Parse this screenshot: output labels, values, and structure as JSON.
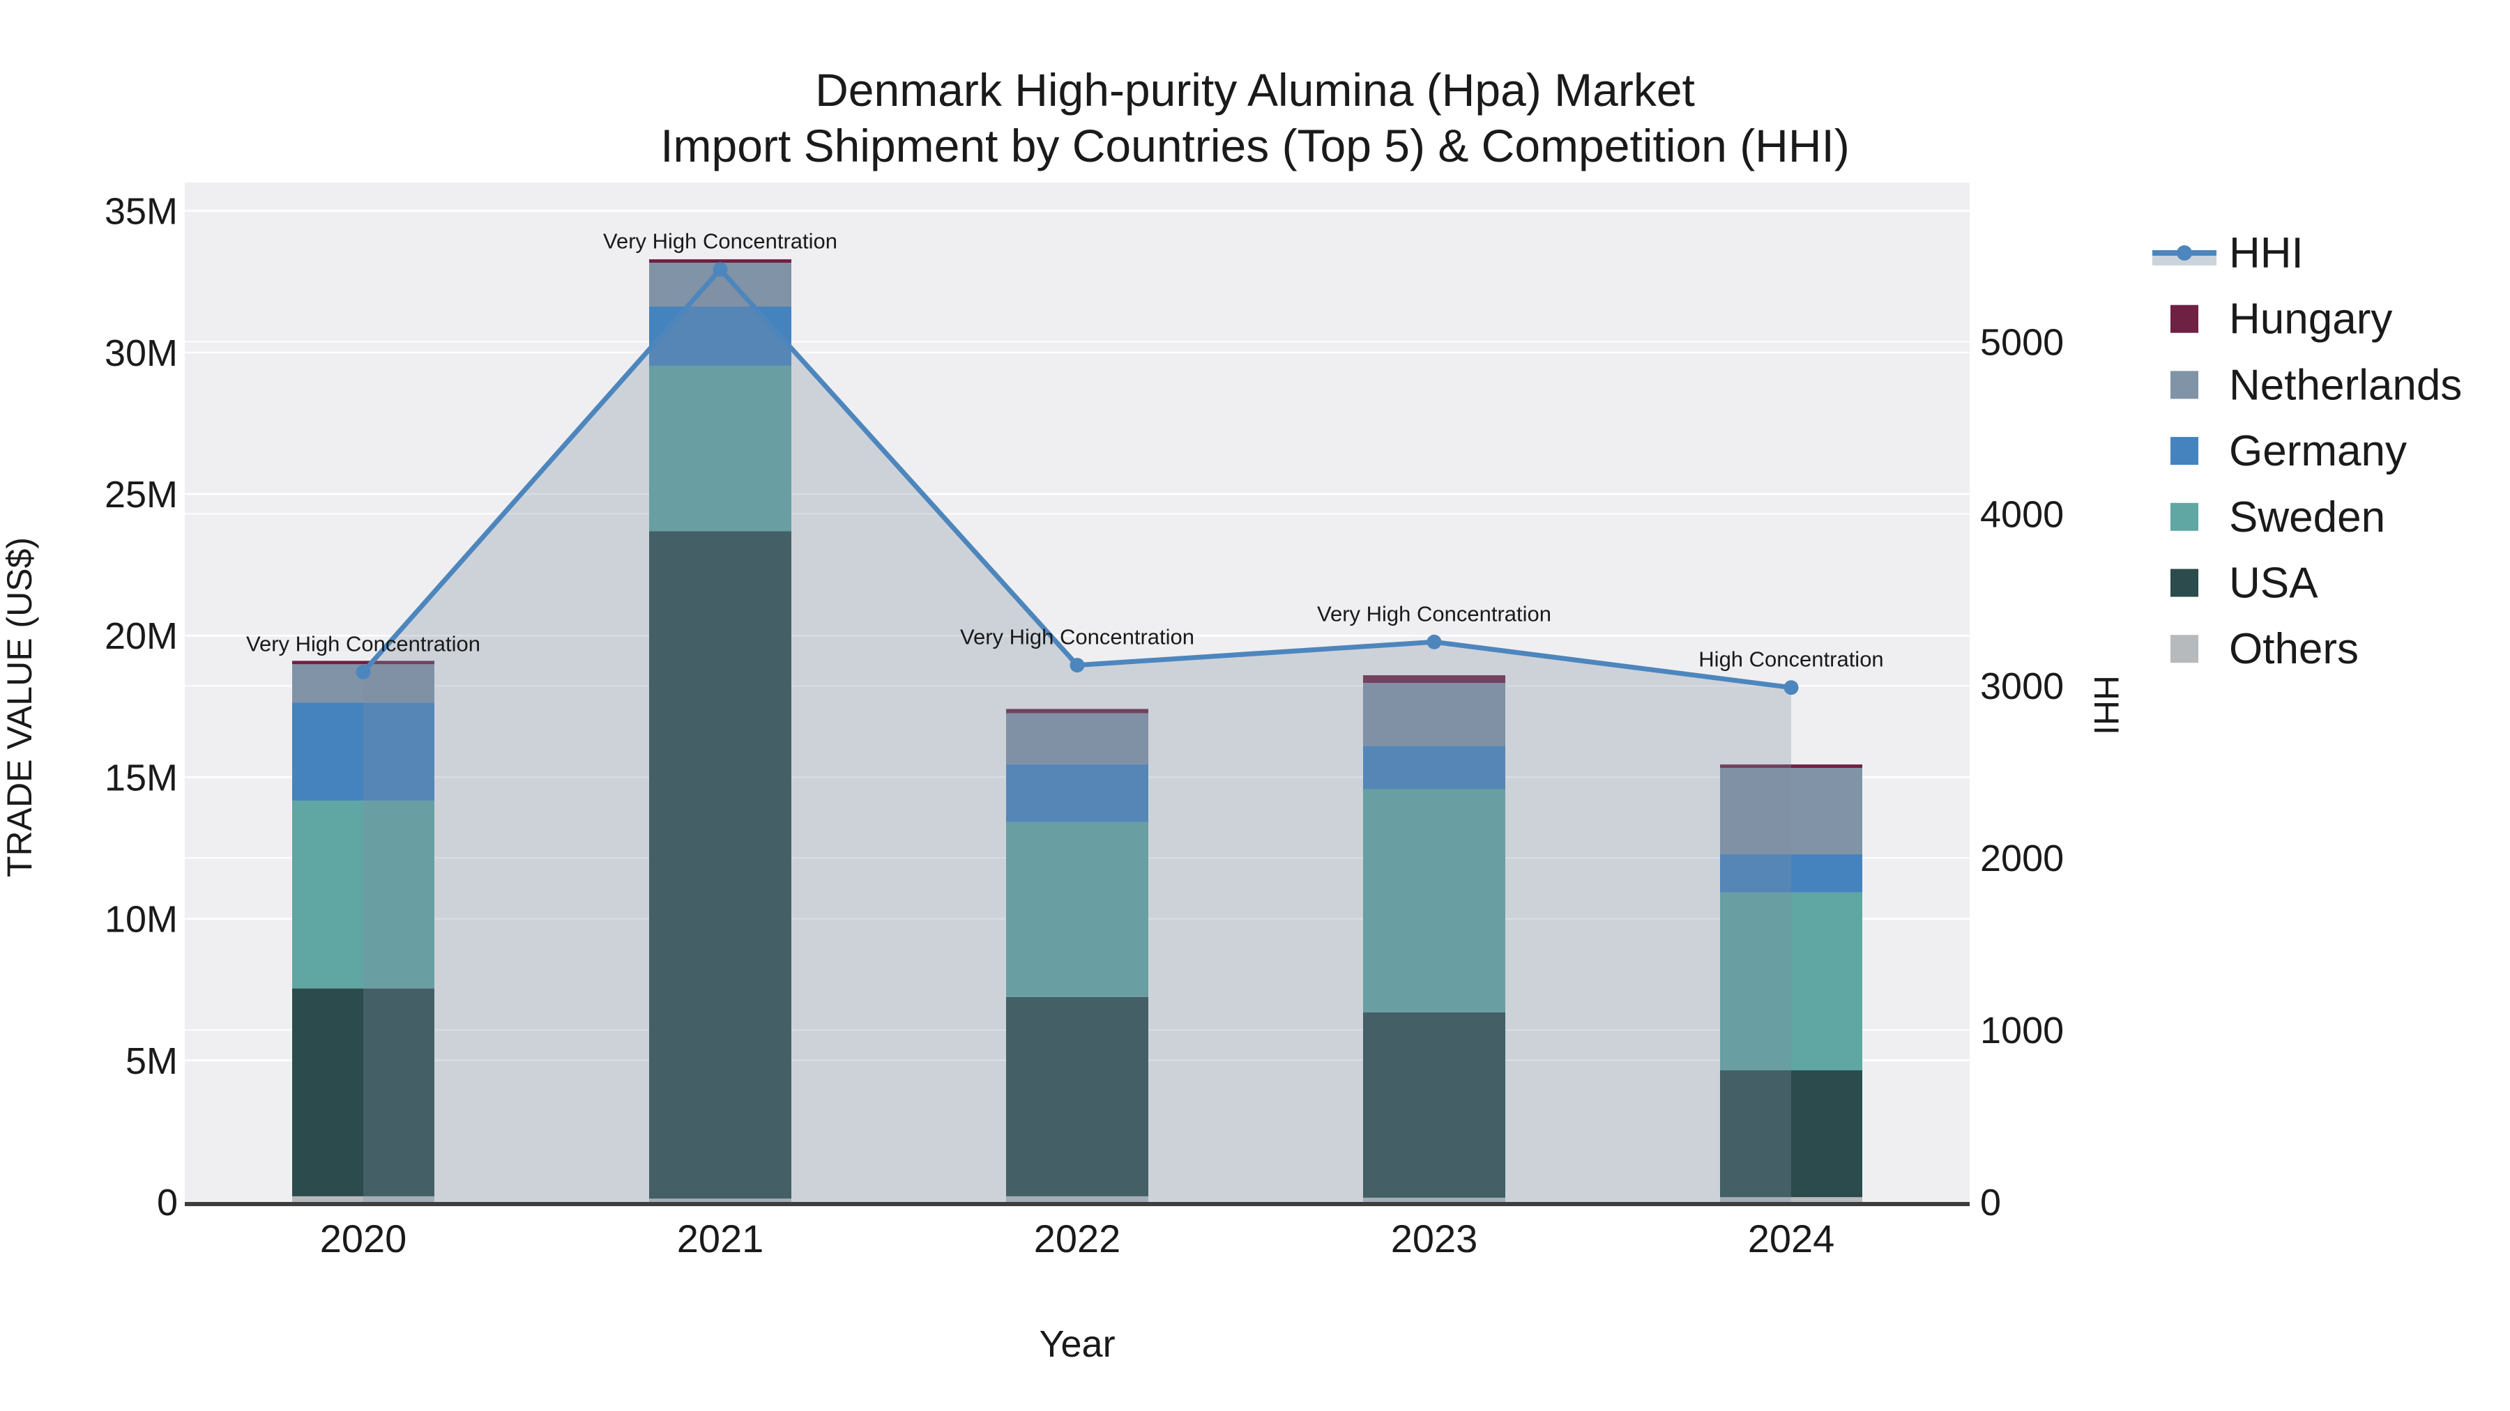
{
  "title": {
    "line1": "Denmark High-purity Alumina (Hpa) Market",
    "line2": "Import Shipment by Countries (Top 5) & Competition (HHI)"
  },
  "axes": {
    "x": {
      "label": "Year",
      "categories": [
        "2020",
        "2021",
        "2022",
        "2023",
        "2024"
      ]
    },
    "y_left": {
      "label": "TRADE VALUE (US$)",
      "tick_labels": [
        "0",
        "5M",
        "10M",
        "15M",
        "20M",
        "25M",
        "30M",
        "35M"
      ],
      "tick_values_musd": [
        0,
        5,
        10,
        15,
        20,
        25,
        30,
        35
      ],
      "max_musd": 36.0
    },
    "y_right": {
      "label": "HHI",
      "tick_labels": [
        "0",
        "1000",
        "2000",
        "3000",
        "4000",
        "5000"
      ],
      "tick_values": [
        0,
        1000,
        2000,
        3000,
        4000,
        5000
      ],
      "max": 5925
    }
  },
  "chart_data": {
    "type": "bar",
    "stacked": true,
    "grid": true,
    "plot_bg": "#efeff1",
    "grid_color": "#ffffff",
    "axis_line_color": "#3d3d3d",
    "categories": [
      "2020",
      "2021",
      "2022",
      "2023",
      "2024"
    ],
    "bar_unit": "million US$",
    "series": [
      {
        "name": "Others",
        "color": "#b7babd",
        "values": [
          0.2,
          0.12,
          0.2,
          0.15,
          0.17
        ]
      },
      {
        "name": "USA",
        "color": "#2c4b4c",
        "values": [
          7.34,
          23.57,
          7.04,
          6.55,
          4.48
        ]
      },
      {
        "name": "Sweden",
        "color": "#60a6a3",
        "values": [
          6.63,
          5.84,
          6.18,
          7.88,
          6.28
        ]
      },
      {
        "name": "Germany",
        "color": "#4583bf",
        "values": [
          3.47,
          2.09,
          2.04,
          1.53,
          1.35
        ]
      },
      {
        "name": "Netherlands",
        "color": "#8193a6",
        "values": [
          1.35,
          1.55,
          1.8,
          2.22,
          3.05
        ]
      },
      {
        "name": "Hungary",
        "color": "#6e2143",
        "values": [
          0.12,
          0.12,
          0.15,
          0.27,
          0.12
        ]
      }
    ],
    "totals_musd": [
      19.11,
      33.29,
      17.41,
      18.6,
      15.45
    ],
    "line_series": {
      "name": "HHI",
      "axis": "right",
      "color": "#4d86bd",
      "area_fill": "rgba(125,142,161,0.30)",
      "values": [
        3080,
        5420,
        3120,
        3255,
        2990
      ]
    },
    "annotations": [
      {
        "x": "2020",
        "text": "Very High Concentration"
      },
      {
        "x": "2021",
        "text": "Very High Concentration"
      },
      {
        "x": "2022",
        "text": "Very High Concentration"
      },
      {
        "x": "2023",
        "text": "Very High Concentration"
      },
      {
        "x": "2024",
        "text": "High Concentration"
      }
    ],
    "legend_position": "right"
  },
  "legend": {
    "items": [
      {
        "label": "HHI",
        "type": "line",
        "color": "#4d86bd",
        "band_color": "#ccd3dc"
      },
      {
        "label": "Hungary",
        "type": "swatch",
        "color": "#6e2143"
      },
      {
        "label": "Netherlands",
        "type": "swatch",
        "color": "#8193a6"
      },
      {
        "label": "Germany",
        "type": "swatch",
        "color": "#4583bf"
      },
      {
        "label": "Sweden",
        "type": "swatch",
        "color": "#60a6a3"
      },
      {
        "label": "USA",
        "type": "swatch",
        "color": "#2c4b4c"
      },
      {
        "label": "Others",
        "type": "swatch",
        "color": "#b7babd"
      }
    ]
  }
}
